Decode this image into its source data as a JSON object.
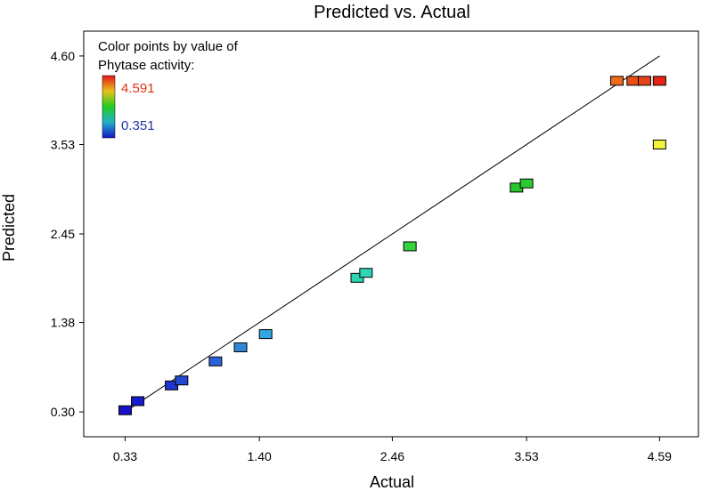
{
  "chart_data": {
    "type": "scatter",
    "title": "Predicted vs. Actual",
    "xlabel": "Actual",
    "ylabel": "Predicted",
    "xlim": [
      0.0,
      4.9
    ],
    "ylim": [
      0.0,
      4.9
    ],
    "xticks": [
      "0.33",
      "1.40",
      "2.46",
      "3.53",
      "4.59"
    ],
    "yticks": [
      "0.30",
      "1.38",
      "2.45",
      "3.53",
      "4.60"
    ],
    "grid": false,
    "legend": {
      "title_line1": "Color points by value of",
      "title_line2": "Phytase activity:",
      "max_label": "4.591",
      "min_label": "0.351",
      "max_color": "#dd3311",
      "min_color": "#2233aa",
      "position": "top-left"
    },
    "reference_line": {
      "x": [
        0.33,
        4.59
      ],
      "y": [
        0.3,
        4.6
      ]
    },
    "points": [
      {
        "x": 0.33,
        "y": 0.32,
        "color": "#1a10c8"
      },
      {
        "x": 0.43,
        "y": 0.43,
        "color": "#1a1ccc"
      },
      {
        "x": 0.7,
        "y": 0.62,
        "color": "#1f35cf"
      },
      {
        "x": 0.78,
        "y": 0.68,
        "color": "#2448d2"
      },
      {
        "x": 1.05,
        "y": 0.91,
        "color": "#2a64d6"
      },
      {
        "x": 1.25,
        "y": 1.08,
        "color": "#2f86d8"
      },
      {
        "x": 1.45,
        "y": 1.24,
        "color": "#33a5e2"
      },
      {
        "x": 2.18,
        "y": 1.92,
        "color": "#29d6b0"
      },
      {
        "x": 2.25,
        "y": 1.98,
        "color": "#2ed6b8"
      },
      {
        "x": 2.6,
        "y": 2.3,
        "color": "#34d23c"
      },
      {
        "x": 3.45,
        "y": 3.01,
        "color": "#27c82c"
      },
      {
        "x": 3.53,
        "y": 3.06,
        "color": "#2bcb30"
      },
      {
        "x": 4.59,
        "y": 3.53,
        "color": "#f2f23a"
      },
      {
        "x": 4.25,
        "y": 4.3,
        "color": "#ee6a1c"
      },
      {
        "x": 4.38,
        "y": 4.3,
        "color": "#e8501a"
      },
      {
        "x": 4.47,
        "y": 4.3,
        "color": "#e44418"
      },
      {
        "x": 4.59,
        "y": 4.3,
        "color": "#e82216"
      }
    ]
  }
}
